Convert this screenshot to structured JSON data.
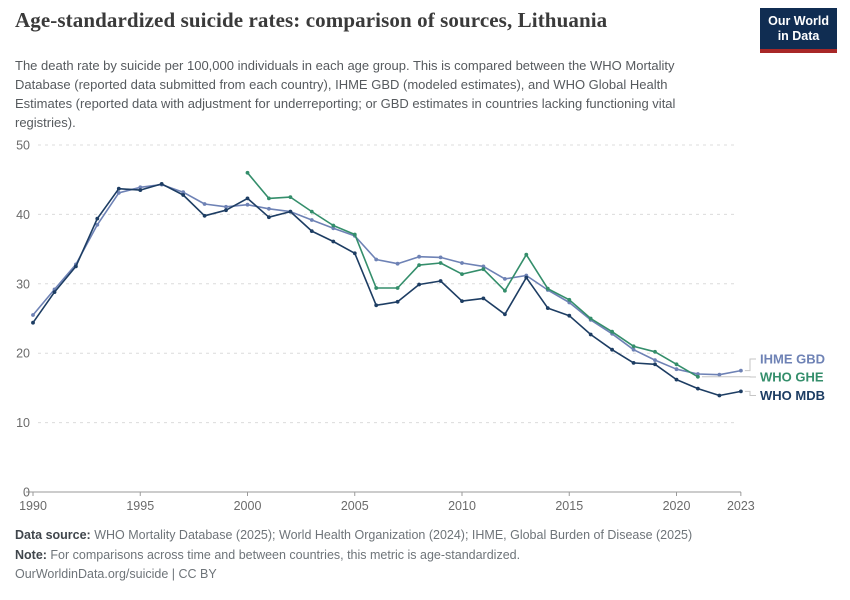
{
  "header": {
    "title": "Age-standardized suicide rates: comparison of sources, Lithuania",
    "subtitle": "The death rate by suicide per 100,000 individuals in each age group. This is compared between the WHO Mortality Database (reported data submitted from each country), IHME GBD (modeled estimates), and WHO Global Health Estimates (reported data with adjustment for underreporting; or GBD estimates in countries lacking functioning vital registries).",
    "logo": {
      "line1": "Our World",
      "line2": "in Data",
      "bg_color": "#102d52",
      "accent_color": "#a82828"
    }
  },
  "chart_data": {
    "type": "line",
    "title": "Age-standardized suicide rates: comparison of sources, Lithuania",
    "xlabel": "",
    "ylabel": "Death rate by suicide per 100,000 individuals",
    "ylim": [
      0,
      50
    ],
    "yticks": [
      0,
      10,
      20,
      30,
      40,
      50
    ],
    "xticks": [
      1990,
      1995,
      2000,
      2005,
      2010,
      2015,
      2020,
      2023
    ],
    "grid": "horizontal-dashed",
    "legend_position": "right",
    "series": [
      {
        "name": "IHME GBD",
        "color": "#6e82b5",
        "years": [
          1990,
          1991,
          1992,
          1993,
          1994,
          1995,
          1996,
          1997,
          1998,
          1999,
          2000,
          2001,
          2002,
          2003,
          2004,
          2005,
          2006,
          2007,
          2008,
          2009,
          2010,
          2011,
          2012,
          2013,
          2014,
          2015,
          2016,
          2017,
          2018,
          2019,
          2020,
          2021,
          2022,
          2023
        ],
        "values": [
          25.5,
          29.2,
          32.8,
          38.5,
          43.1,
          43.9,
          44.3,
          43.2,
          41.5,
          41.1,
          41.4,
          40.8,
          40.4,
          39.2,
          38.0,
          36.9,
          33.5,
          32.9,
          33.9,
          33.8,
          33.0,
          32.5,
          30.7,
          31.2,
          29.1,
          27.3,
          24.8,
          22.8,
          20.5,
          19.0,
          17.7,
          17.0,
          16.9,
          17.5
        ]
      },
      {
        "name": "WHO GHE",
        "color": "#348e6b",
        "years": [
          2000,
          2001,
          2002,
          2003,
          2004,
          2005,
          2006,
          2007,
          2008,
          2009,
          2010,
          2011,
          2012,
          2013,
          2014,
          2015,
          2016,
          2017,
          2018,
          2019,
          2020,
          2021
        ],
        "values": [
          46.0,
          42.3,
          42.5,
          40.4,
          38.4,
          37.1,
          29.4,
          29.4,
          32.7,
          33.0,
          31.4,
          32.1,
          29.0,
          34.2,
          29.3,
          27.7,
          25.0,
          23.1,
          21.0,
          20.2,
          18.4,
          16.6
        ]
      },
      {
        "name": "WHO MDB",
        "color": "#1d3d63",
        "years": [
          1990,
          1991,
          1992,
          1993,
          1994,
          1995,
          1996,
          1997,
          1998,
          1999,
          2000,
          2001,
          2002,
          2003,
          2004,
          2005,
          2006,
          2007,
          2008,
          2009,
          2010,
          2011,
          2012,
          2013,
          2014,
          2015,
          2016,
          2017,
          2018,
          2019,
          2020,
          2021,
          2022,
          2023
        ],
        "values": [
          24.4,
          28.8,
          32.5,
          39.4,
          43.7,
          43.5,
          44.4,
          42.8,
          39.8,
          40.6,
          42.3,
          39.6,
          40.4,
          37.6,
          36.1,
          34.4,
          26.9,
          27.4,
          29.9,
          30.4,
          27.5,
          27.9,
          25.6,
          30.9,
          26.5,
          25.4,
          22.7,
          20.5,
          18.6,
          18.4,
          16.2,
          14.9,
          13.9,
          14.5
        ]
      }
    ]
  },
  "footer": {
    "data_source_label": "Data source:",
    "data_source_text": " WHO Mortality Database (2025); World Health Organization (2024); IHME, Global Burden of Disease (2025)",
    "note_label": "Note:",
    "note_text": " For comparisons across time and between countries, this metric is age-standardized.",
    "url_line": "OurWorldinData.org/suicide | CC BY"
  }
}
